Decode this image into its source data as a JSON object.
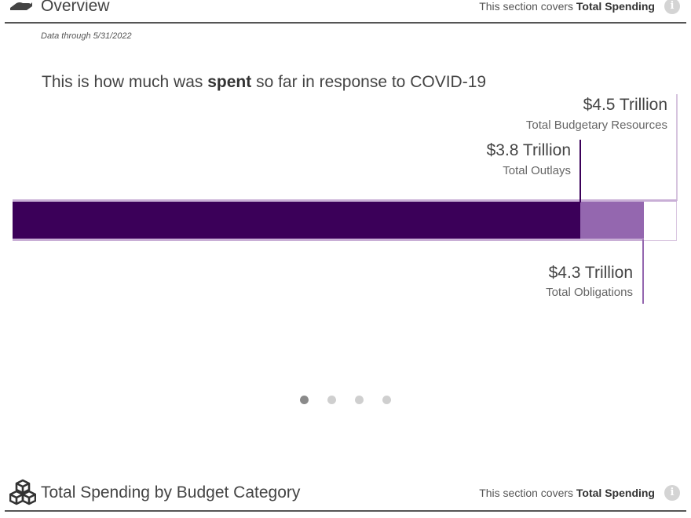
{
  "overview": {
    "title": "Overview",
    "covers_prefix": "This section covers ",
    "covers_bold": "Total Spending",
    "info_label": "i",
    "icon": "hand-money-icon",
    "data_through": "Data through 5/31/2022"
  },
  "chart": {
    "title_prefix": "This is how much was ",
    "title_bold": "spent",
    "title_suffix": " so far in response to COVID-19",
    "resources": {
      "value": "$4.5 Trillion",
      "label": "Total Budgetary Resources"
    },
    "outlays": {
      "value": "$3.8 Trillion",
      "label": "Total Outlays"
    },
    "obligations": {
      "value": "$4.3 Trillion",
      "label": "Total Obligations"
    },
    "colors": {
      "outlays": "#3b0059",
      "obligations": "#9467af",
      "resources": "#d6c4de"
    }
  },
  "chart_data": {
    "type": "bar",
    "categories": [
      "Total Outlays",
      "Total Obligations",
      "Total Budgetary Resources"
    ],
    "values": [
      3.8,
      4.3,
      4.5
    ],
    "title": "This is how much was spent so far in response to COVID-19"
  },
  "carousel": {
    "count": 4,
    "active": 0
  },
  "budget": {
    "title": "Total Spending by Budget Category",
    "covers_prefix": "This section covers ",
    "covers_bold": "Total Spending",
    "info_label": "i",
    "icon": "cubes-icon"
  }
}
